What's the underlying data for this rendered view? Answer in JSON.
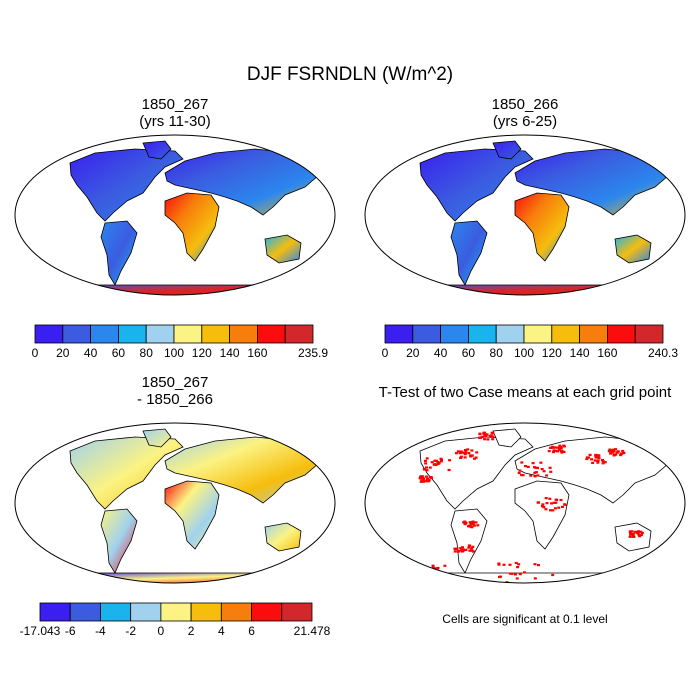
{
  "title": "DJF FSRNDLN (W/m^2)",
  "note": "Cells are significant at 0.1 level",
  "chart_data": [
    {
      "type": "heatmap",
      "title": "1850_267",
      "subtitle": "(yrs 11-30)",
      "projection": "Robinson world map",
      "colorbar": {
        "levels": [
          "0",
          "20",
          "40",
          "60",
          "80",
          "100",
          "120",
          "140",
          "160",
          "235.9"
        ],
        "colors": [
          "#3a1ff0",
          "#3b5ce0",
          "#2b86ee",
          "#19b4ee",
          "#a0d1ee",
          "#fbf383",
          "#f6bd0d",
          "#f77d0c",
          "#fb0d0d",
          "#d2282c"
        ]
      },
      "max": 235.9
    },
    {
      "type": "heatmap",
      "title": "1850_266",
      "subtitle": "(yrs 6-25)",
      "projection": "Robinson world map",
      "colorbar": {
        "levels": [
          "0",
          "20",
          "40",
          "60",
          "80",
          "100",
          "120",
          "140",
          "160",
          "240.3"
        ],
        "colors": [
          "#3a1ff0",
          "#3b5ce0",
          "#2b86ee",
          "#19b4ee",
          "#a0d1ee",
          "#fbf383",
          "#f6bd0d",
          "#f77d0c",
          "#fb0d0d",
          "#d2282c"
        ]
      },
      "max": 240.3
    },
    {
      "type": "heatmap",
      "title": "1850_267",
      "subtitle": "- 1850_266",
      "projection": "Robinson world map",
      "colorbar": {
        "levels": [
          "-17.043",
          "-6",
          "-4",
          "-2",
          "0",
          "2",
          "4",
          "6",
          "21.478"
        ],
        "colors": [
          "#3a1ff0",
          "#3b5ce0",
          "#19b4ee",
          "#a0d1ee",
          "#fbf383",
          "#f6bd0d",
          "#f77d0c",
          "#fb0d0d",
          "#d2282c"
        ]
      },
      "min": -17.043,
      "max": 21.478
    },
    {
      "type": "heatmap",
      "title": "T-Test of two Case means at each grid point",
      "projection": "Robinson world map",
      "significant_color": "#ff0000"
    }
  ]
}
